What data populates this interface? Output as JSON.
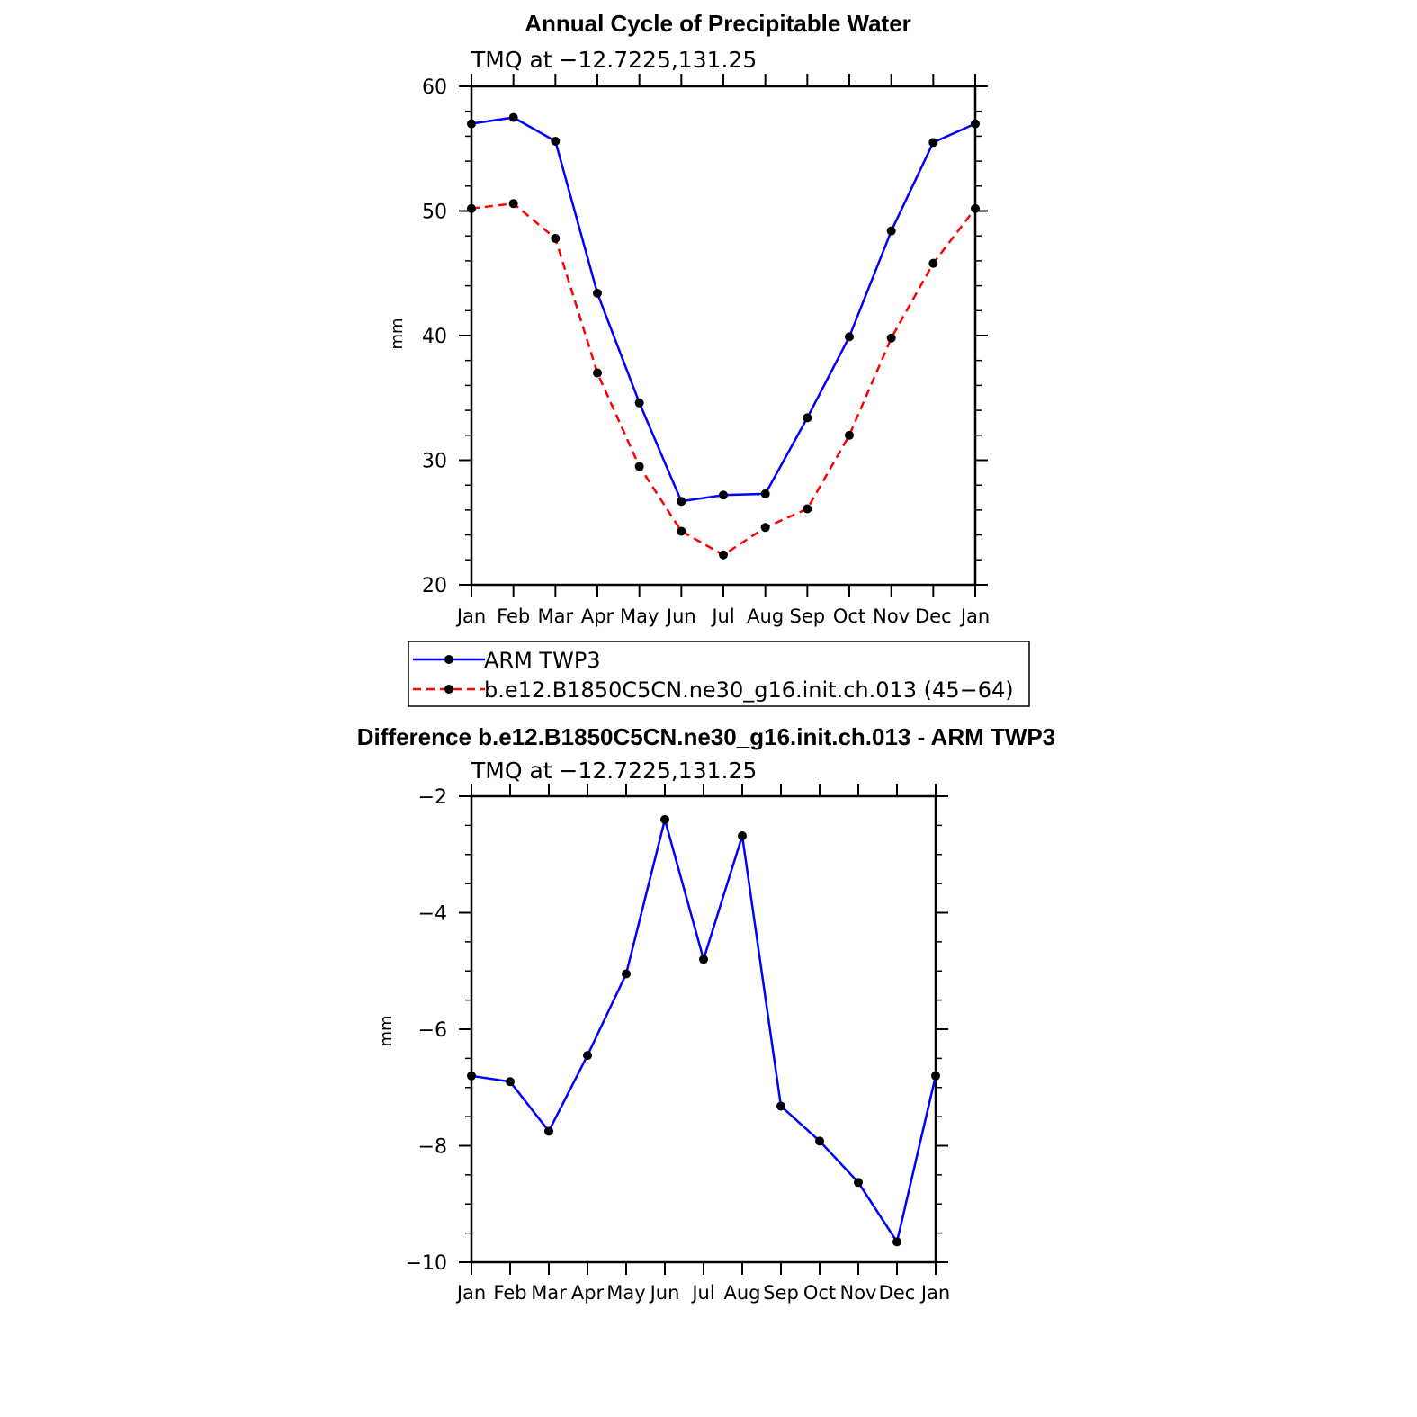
{
  "chart_data": [
    {
      "type": "line",
      "title": "Annual Cycle of Precipitable Water",
      "subtitle": "TMQ at −12.7225,131.25",
      "ylabel": "mm",
      "ylim": [
        20,
        60
      ],
      "yticks": [
        20,
        30,
        40,
        50,
        60
      ],
      "yticks_labels": [
        "20",
        "30",
        "40",
        "50",
        "60"
      ],
      "categories": [
        "Jan",
        "Feb",
        "Mar",
        "Apr",
        "May",
        "Jun",
        "Jul",
        "Aug",
        "Sep",
        "Oct",
        "Nov",
        "Dec",
        "Jan"
      ],
      "series": [
        {
          "name": "ARM TWP3",
          "color": "#0000ff",
          "dash": "solid",
          "values": [
            57.0,
            57.5,
            55.6,
            43.4,
            34.6,
            26.7,
            27.2,
            27.3,
            33.4,
            39.9,
            48.4,
            55.5,
            57.0
          ]
        },
        {
          "name": "b.e12.B1850C5CN.ne30_g16.init.ch.013 (45−64)",
          "color": "#ff0000",
          "dash": "dashed",
          "values": [
            50.2,
            50.6,
            47.8,
            37.0,
            29.5,
            24.3,
            22.4,
            24.6,
            26.1,
            32.0,
            39.8,
            45.8,
            50.2
          ]
        }
      ],
      "legend_position": "bottom"
    },
    {
      "type": "line",
      "title": "Difference b.e12.B1850C5CN.ne30_g16.init.ch.013 - ARM TWP3",
      "subtitle": "TMQ at −12.7225,131.25",
      "ylabel": "mm",
      "ylim": [
        -10,
        -2
      ],
      "yticks": [
        -10,
        -8,
        -6,
        -4,
        -2
      ],
      "yticks_labels": [
        "−10",
        "−8",
        "−6",
        "−4",
        "−2"
      ],
      "categories": [
        "Jan",
        "Feb",
        "Mar",
        "Apr",
        "May",
        "Jun",
        "Jul",
        "Aug",
        "Sep",
        "Oct",
        "Nov",
        "Dec",
        "Jan"
      ],
      "series": [
        {
          "name": "Difference",
          "color": "#0000ff",
          "dash": "solid",
          "values": [
            -6.8,
            -6.9,
            -7.75,
            -6.45,
            -5.05,
            -2.4,
            -4.8,
            -2.68,
            -7.32,
            -7.92,
            -8.63,
            -9.65,
            -6.8
          ]
        }
      ]
    }
  ]
}
